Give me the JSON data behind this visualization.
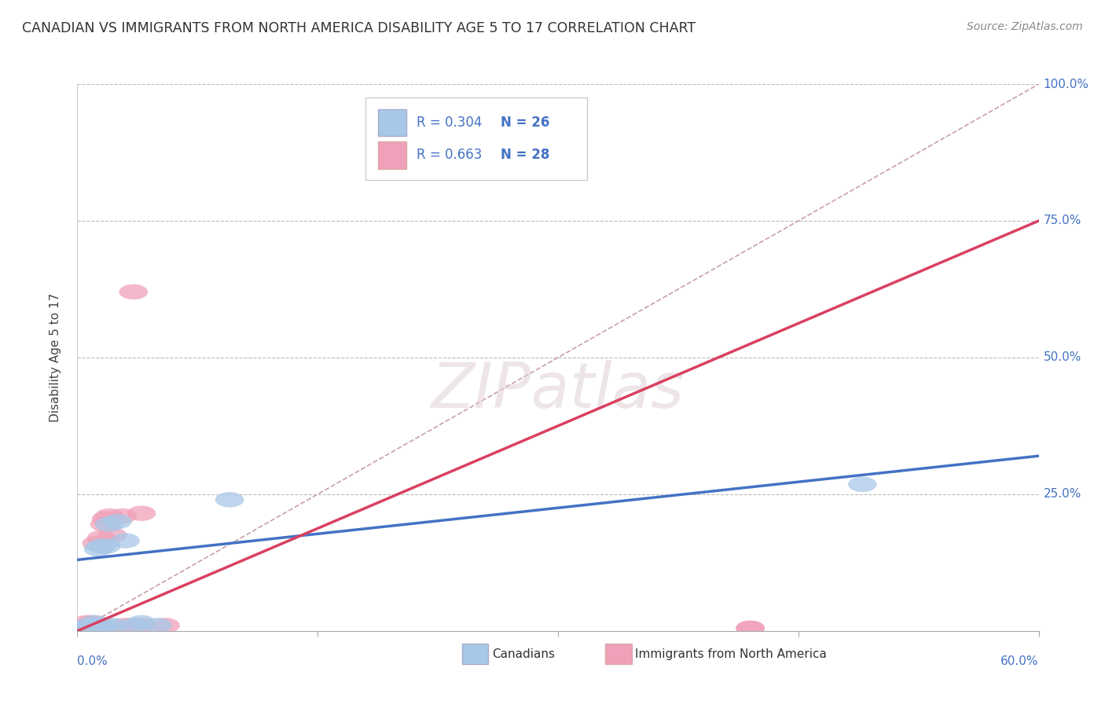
{
  "title": "CANADIAN VS IMMIGRANTS FROM NORTH AMERICA DISABILITY AGE 5 TO 17 CORRELATION CHART",
  "source": "Source: ZipAtlas.com",
  "ylabel": "Disability Age 5 to 17",
  "xlim": [
    0.0,
    0.6
  ],
  "ylim": [
    0.0,
    1.0
  ],
  "xticks": [
    0.0,
    0.15,
    0.3,
    0.45,
    0.6
  ],
  "yticks": [
    0.0,
    0.25,
    0.5,
    0.75,
    1.0
  ],
  "ytick_labels": [
    "",
    "25.0%",
    "50.0%",
    "75.0%",
    "100.0%"
  ],
  "blue_R": 0.304,
  "blue_N": 26,
  "pink_R": 0.663,
  "pink_N": 28,
  "blue_label": "Canadians",
  "pink_label": "Immigrants from North America",
  "blue_color": "#A8C8E8",
  "pink_color": "#F0A0B8",
  "blue_line_color": "#4472C4",
  "pink_line_color": "#D94060",
  "ref_line_color": "#C8A0A8",
  "blue_line_x0": 0.0,
  "blue_line_y0": 0.13,
  "blue_line_x1": 0.6,
  "blue_line_y1": 0.32,
  "pink_line_x0": 0.0,
  "pink_line_y0": 0.0,
  "pink_line_x1": 0.6,
  "pink_line_y1": 0.75,
  "blue_x": [
    0.003,
    0.004,
    0.005,
    0.006,
    0.007,
    0.007,
    0.008,
    0.009,
    0.01,
    0.011,
    0.012,
    0.012,
    0.013,
    0.015,
    0.015,
    0.017,
    0.018,
    0.02,
    0.022,
    0.025,
    0.03,
    0.035,
    0.04,
    0.05,
    0.095,
    0.49
  ],
  "blue_y": [
    0.005,
    0.005,
    0.005,
    0.005,
    0.005,
    0.01,
    0.005,
    0.005,
    0.005,
    0.015,
    0.005,
    0.01,
    0.15,
    0.155,
    0.005,
    0.01,
    0.155,
    0.195,
    0.01,
    0.2,
    0.165,
    0.01,
    0.015,
    0.01,
    0.24,
    0.268
  ],
  "pink_x": [
    0.002,
    0.003,
    0.004,
    0.005,
    0.006,
    0.007,
    0.008,
    0.009,
    0.01,
    0.011,
    0.012,
    0.013,
    0.014,
    0.015,
    0.016,
    0.017,
    0.018,
    0.02,
    0.022,
    0.025,
    0.028,
    0.03,
    0.035,
    0.04,
    0.04,
    0.055,
    0.42,
    0.42
  ],
  "pink_y": [
    0.005,
    0.005,
    0.005,
    0.005,
    0.015,
    0.005,
    0.005,
    0.015,
    0.01,
    0.01,
    0.16,
    0.005,
    0.01,
    0.17,
    0.005,
    0.195,
    0.205,
    0.21,
    0.175,
    0.005,
    0.21,
    0.01,
    0.62,
    0.215,
    0.01,
    0.01,
    0.005,
    0.005
  ]
}
